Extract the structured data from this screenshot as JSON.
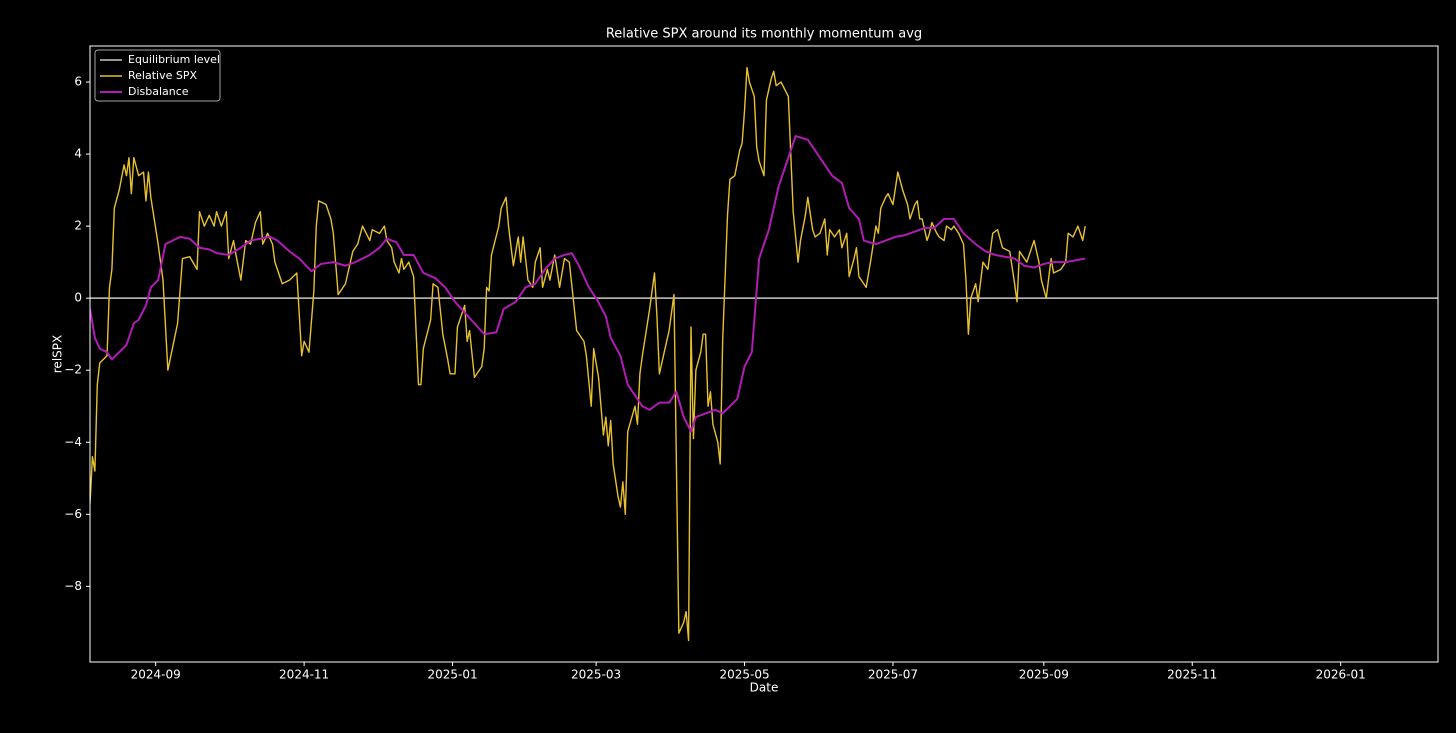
{
  "chart_data": {
    "type": "line",
    "title": "Relative SPX around its monthly momentum avg",
    "xlabel": "Date",
    "ylabel": "relSPX",
    "xlim": [
      19940,
      20494
    ],
    "xticks": [
      {
        "value": 19967,
        "label": "2024-09"
      },
      {
        "value": 20028,
        "label": "2024-11"
      },
      {
        "value": 20089,
        "label": "2025-01"
      },
      {
        "value": 20148,
        "label": "2025-03"
      },
      {
        "value": 20209,
        "label": "2025-05"
      },
      {
        "value": 20270,
        "label": "2025-07"
      },
      {
        "value": 20332,
        "label": "2025-09"
      },
      {
        "value": 20393,
        "label": "2025-11"
      },
      {
        "value": 20454,
        "label": "2026-01"
      }
    ],
    "ylim": [
      -10.1,
      7.0
    ],
    "yticks": [
      {
        "value": -8,
        "label": "−8"
      },
      {
        "value": -6,
        "label": "−6"
      },
      {
        "value": -4,
        "label": "−4"
      },
      {
        "value": -2,
        "label": "−2"
      },
      0,
      2,
      4,
      6
    ],
    "legend": "upper left",
    "reference_lines": [
      {
        "name": "Equilibrium level",
        "color": "#c8c8c8",
        "value": 0
      }
    ],
    "series": [
      {
        "name": "Relative SPX",
        "color": "#e8c130",
        "x": [
          19940,
          19941,
          19942,
          19943,
          19944,
          19947,
          19948,
          19949,
          19950,
          19952,
          19954,
          19955,
          19956,
          19957,
          19958,
          19960,
          19962,
          19963,
          19964,
          19965,
          19968,
          19970,
          19972,
          19976,
          19978,
          19981,
          19984,
          19985,
          19987,
          19989,
          19991,
          19992,
          19994,
          19996,
          19997,
          19999,
          20000,
          20002,
          20004,
          20006,
          20008,
          20010,
          20011,
          20013,
          20015,
          20016,
          20019,
          20022,
          20025,
          20027,
          20028,
          20030,
          20032,
          20033,
          20034,
          20037,
          20039,
          20040,
          20042,
          20045,
          20048,
          20050,
          20052,
          20055,
          20056,
          20059,
          20061,
          20062,
          20064,
          20065,
          20067,
          20068,
          20069,
          20071,
          20073,
          20075,
          20076,
          20077,
          20080,
          20081,
          20083,
          20085,
          20087,
          20088,
          20090,
          20091,
          20093,
          20094,
          20095,
          20096,
          20098,
          20101,
          20102,
          20103,
          20104,
          20105,
          20108,
          20109,
          20111,
          20112,
          20114,
          20116,
          20117,
          20118,
          20120,
          20122,
          20123,
          20125,
          20126,
          20128,
          20129,
          20131,
          20133,
          20135,
          20137,
          20140,
          20143,
          20144,
          20146,
          20147,
          20149,
          20151,
          20152,
          20153,
          20154,
          20155,
          20157,
          20158,
          20159,
          20160,
          20161,
          20164,
          20165,
          20166,
          20167,
          20170,
          20172,
          20173,
          20174,
          20176,
          20178,
          20180,
          20182,
          20184,
          20185,
          20186,
          20187,
          20188,
          20189,
          20191,
          20192,
          20193,
          20194,
          20195,
          20196,
          20198,
          20199,
          20200,
          20202,
          20203,
          20205,
          20207,
          20208,
          20209,
          20210,
          20211,
          20213,
          20214,
          20215,
          20217,
          20218,
          20220,
          20221,
          20222,
          20224,
          20227,
          20229,
          20231,
          20232,
          20234,
          20235,
          20237,
          20238,
          20240,
          20242,
          20243,
          20244,
          20246,
          20248,
          20249,
          20251,
          20252,
          20254,
          20255,
          20256,
          20259,
          20261,
          20263,
          20264,
          20265,
          20267,
          20268,
          20270,
          20272,
          20274,
          20276,
          20277,
          20279,
          20280,
          20281,
          20282,
          20284,
          20285,
          20286,
          20288,
          20289,
          20291,
          20292,
          20294,
          20295,
          20297,
          20299,
          20300,
          20301,
          20302,
          20304,
          20305,
          20307,
          20309,
          20311,
          20313,
          20315,
          20318,
          20320,
          20321,
          20322,
          20325,
          20327,
          20328,
          20330,
          20331,
          20333,
          20335,
          20336,
          20339,
          20341,
          20342,
          20344,
          20346,
          20348,
          20349
        ],
        "values": [
          -5.7,
          -4.4,
          -4.8,
          -2.4,
          -1.8,
          -1.6,
          0.3,
          0.8,
          2.5,
          3.0,
          3.7,
          3.4,
          3.9,
          2.9,
          3.9,
          3.4,
          3.5,
          2.7,
          3.5,
          2.8,
          1.5,
          0.5,
          -2.0,
          -0.7,
          1.1,
          1.15,
          0.8,
          2.4,
          2.0,
          2.3,
          2.0,
          2.4,
          2.0,
          2.4,
          1.1,
          1.6,
          1.2,
          0.5,
          1.6,
          1.5,
          2.1,
          2.4,
          1.5,
          1.8,
          1.5,
          1.0,
          0.4,
          0.5,
          0.7,
          -1.6,
          -1.2,
          -1.5,
          0.2,
          2.0,
          2.7,
          2.6,
          2.2,
          1.8,
          0.1,
          0.4,
          1.3,
          1.5,
          2.0,
          1.6,
          1.9,
          1.8,
          2.0,
          1.6,
          1.4,
          1.0,
          0.7,
          1.1,
          0.8,
          1.0,
          0.6,
          -2.4,
          -2.4,
          -1.4,
          -0.6,
          0.4,
          0.3,
          -1.0,
          -1.7,
          -2.1,
          -2.1,
          -0.8,
          -0.4,
          -0.2,
          -1.2,
          -0.9,
          -2.2,
          -1.9,
          -1.4,
          0.3,
          0.2,
          1.2,
          2.0,
          2.5,
          2.8,
          2.0,
          0.9,
          1.7,
          1.0,
          1.7,
          0.5,
          0.3,
          1.0,
          1.4,
          0.3,
          0.8,
          0.5,
          1.2,
          0.3,
          1.1,
          1.0,
          -0.9,
          -1.2,
          -1.6,
          -3.0,
          -1.4,
          -2.2,
          -3.8,
          -3.3,
          -4.1,
          -3.4,
          -4.6,
          -5.5,
          -5.8,
          -5.1,
          -6.0,
          -3.7,
          -3.0,
          -3.5,
          -2.1,
          -1.6,
          -0.3,
          0.7,
          -0.5,
          -2.1,
          -1.5,
          -0.9,
          0.1,
          -9.3,
          -9.0,
          -8.7,
          -9.5,
          -0.8,
          -3.9,
          -2.0,
          -1.5,
          -1.0,
          -1.0,
          -3.0,
          -2.6,
          -3.5,
          -4.0,
          -4.6,
          -1.2,
          2.3,
          3.3,
          3.4,
          4.1,
          4.3,
          5.2,
          6.4,
          6.0,
          5.6,
          4.2,
          3.8,
          3.4,
          5.5,
          6.1,
          6.3,
          5.9,
          6.0,
          5.6,
          2.4,
          1.0,
          1.6,
          2.3,
          2.8,
          1.9,
          1.7,
          1.8,
          2.2,
          1.2,
          1.9,
          1.7,
          1.9,
          1.4,
          1.8,
          0.6,
          1.1,
          1.4,
          0.6,
          0.3,
          1.1,
          2.0,
          1.8,
          2.5,
          2.8,
          2.9,
          2.6,
          3.5,
          3.0,
          2.6,
          2.2,
          2.6,
          2.7,
          2.2,
          2.2,
          1.6,
          1.8,
          2.1,
          1.8,
          1.7,
          1.6,
          2.0,
          1.9,
          2.0,
          1.8,
          1.5,
          0.5,
          -1.0,
          0.0,
          0.4,
          -0.1,
          1.0,
          0.8,
          1.8,
          1.9,
          1.4,
          1.3,
          0.4,
          -0.1,
          1.3,
          1.0,
          1.4,
          1.6,
          1.0,
          0.5,
          0.0,
          1.1,
          0.7,
          0.8,
          1.0,
          1.8,
          1.7,
          2.0,
          1.6,
          2.0
        ]
      },
      {
        "name": "Disbalance",
        "color": "#b01cb4",
        "x": [
          19940,
          19942,
          19944,
          19947,
          19949,
          19952,
          19955,
          19958,
          19960,
          19963,
          19965,
          19968,
          19971,
          19974,
          19977,
          19981,
          19985,
          19989,
          19992,
          19997,
          20002,
          20006,
          20010,
          20014,
          20017,
          20022,
          20026,
          20031,
          20035,
          20040,
          20045,
          20049,
          20055,
          20059,
          20062,
          20066,
          20069,
          20073,
          20077,
          20082,
          20086,
          20090,
          20094,
          20098,
          20102,
          20107,
          20110,
          20115,
          20119,
          20123,
          20127,
          20131,
          20135,
          20138,
          20141,
          20145,
          20148,
          20152,
          20154,
          20158,
          20161,
          20164,
          20167,
          20170,
          20174,
          20178,
          20181,
          20184,
          20187,
          20189,
          20193,
          20197,
          20200,
          20203,
          20206,
          20209,
          20212,
          20215,
          20219,
          20223,
          20226,
          20228,
          20230,
          20235,
          20239,
          20242,
          20245,
          20249,
          20252,
          20256,
          20258,
          20263,
          20267,
          20271,
          20275,
          20279,
          20283,
          20287,
          20291,
          20295,
          20299,
          20304,
          20308,
          20312,
          20316,
          20320,
          20324,
          20328,
          20332,
          20336,
          20341,
          20345,
          20349
        ],
        "values": [
          -0.3,
          -1.1,
          -1.4,
          -1.5,
          -1.7,
          -1.5,
          -1.3,
          -0.7,
          -0.6,
          -0.2,
          0.3,
          0.5,
          1.5,
          1.6,
          1.7,
          1.65,
          1.4,
          1.35,
          1.25,
          1.2,
          1.4,
          1.6,
          1.65,
          1.7,
          1.6,
          1.3,
          1.1,
          0.75,
          0.95,
          1.0,
          0.9,
          1.0,
          1.2,
          1.4,
          1.65,
          1.55,
          1.2,
          1.2,
          0.7,
          0.55,
          0.3,
          -0.1,
          -0.4,
          -0.7,
          -1.0,
          -0.95,
          -0.3,
          -0.1,
          0.3,
          0.4,
          0.8,
          1.1,
          1.2,
          1.25,
          0.9,
          0.3,
          0.0,
          -0.5,
          -1.1,
          -1.6,
          -2.4,
          -2.7,
          -3.0,
          -3.1,
          -2.9,
          -2.9,
          -2.6,
          -3.3,
          -3.7,
          -3.3,
          -3.2,
          -3.1,
          -3.2,
          -3.0,
          -2.8,
          -1.9,
          -1.5,
          1.1,
          1.9,
          3.1,
          3.7,
          4.1,
          4.5,
          4.4,
          4.0,
          3.7,
          3.4,
          3.2,
          2.5,
          2.2,
          1.6,
          1.5,
          1.6,
          1.7,
          1.75,
          1.85,
          1.95,
          1.95,
          2.2,
          2.2,
          1.8,
          1.5,
          1.3,
          1.2,
          1.15,
          1.1,
          0.9,
          0.85,
          0.95,
          1.0,
          1.0,
          1.05,
          1.1
        ]
      }
    ]
  }
}
